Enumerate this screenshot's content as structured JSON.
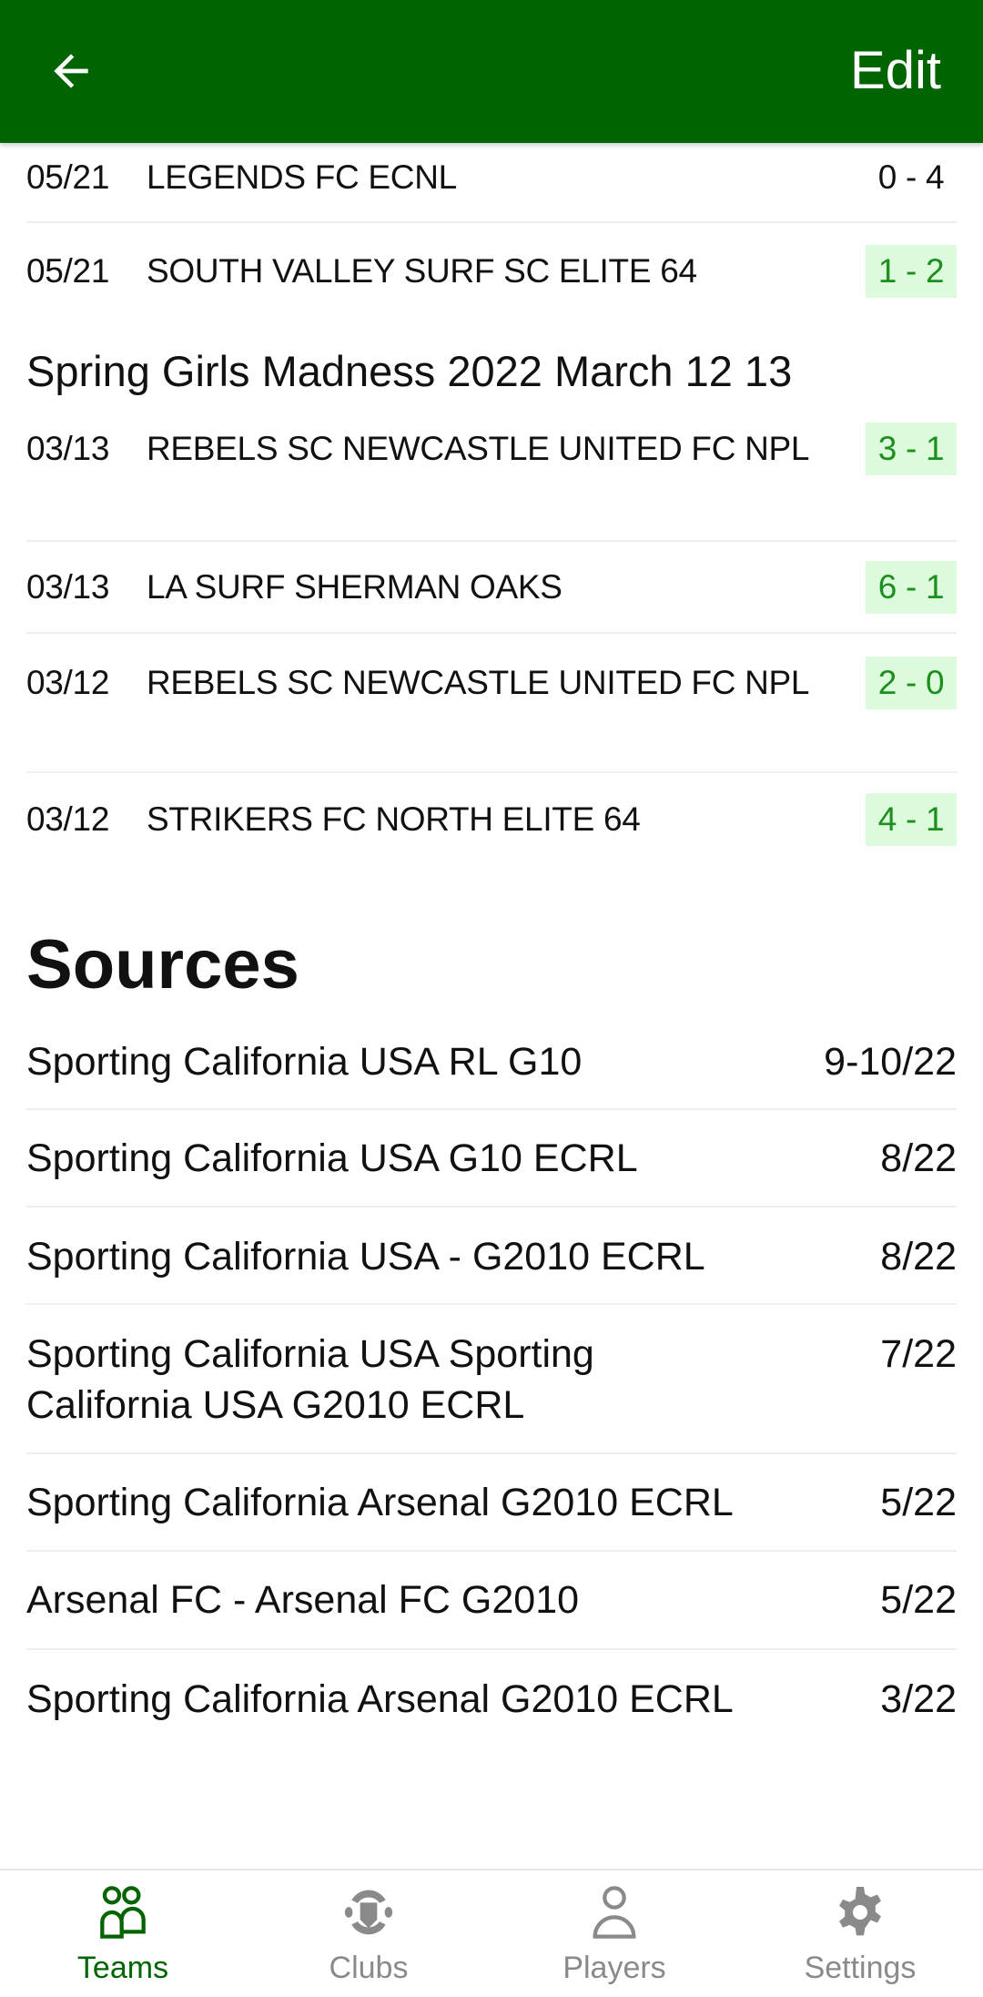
{
  "appbar": {
    "back_icon": "arrow-left-icon",
    "edit_label": "Edit",
    "color": "#006400"
  },
  "games_top": [
    {
      "date": "05/21",
      "team": "LEGENDS FC ECNL",
      "score": "0 - 4",
      "result": "loss"
    },
    {
      "date": "05/21",
      "team": "SOUTH VALLEY SURF SC ELITE 64",
      "score": "1 - 2",
      "result": "win"
    }
  ],
  "tournament": {
    "title": "Spring Girls Madness 2022 March 12 13",
    "games": [
      {
        "date": "03/13",
        "team": "REBELS SC NEWCASTLE UNITED FC NPL",
        "score": "3 - 1",
        "result": "win"
      },
      {
        "date": "03/13",
        "team": "LA SURF SHERMAN OAKS",
        "score": "6 - 1",
        "result": "win"
      },
      {
        "date": "03/12",
        "team": "REBELS SC NEWCASTLE UNITED FC NPL",
        "score": "2 - 0",
        "result": "win"
      },
      {
        "date": "03/12",
        "team": "STRIKERS FC NORTH ELITE 64",
        "score": "4 - 1",
        "result": "win"
      }
    ]
  },
  "sources": {
    "title": "Sources",
    "items": [
      {
        "name": "Sporting California USA RL G10",
        "date": "9-10/22"
      },
      {
        "name": "Sporting California USA G10 ECRL",
        "date": "8/22"
      },
      {
        "name": "Sporting California USA - G2010 ECRL",
        "date": "8/22"
      },
      {
        "name": "Sporting California USA Sporting California USA G2010 ECRL",
        "date": "7/22"
      },
      {
        "name": "Sporting California Arsenal G2010 ECRL",
        "date": "5/22"
      },
      {
        "name": "Arsenal FC - Arsenal FC G2010",
        "date": "5/22"
      },
      {
        "name": "Sporting California Arsenal G2010 ECRL",
        "date": "3/22"
      }
    ]
  },
  "bottom_nav": [
    {
      "label": "Teams",
      "icon": "teams-icon",
      "active": true
    },
    {
      "label": "Clubs",
      "icon": "clubs-icon",
      "active": false
    },
    {
      "label": "Players",
      "icon": "player-icon",
      "active": false
    },
    {
      "label": "Settings",
      "icon": "gear-icon",
      "active": false
    }
  ],
  "colors": {
    "win_bg": "#dcfadc",
    "win_text": "#1d8f1d",
    "inactive": "#8a8a8a"
  }
}
